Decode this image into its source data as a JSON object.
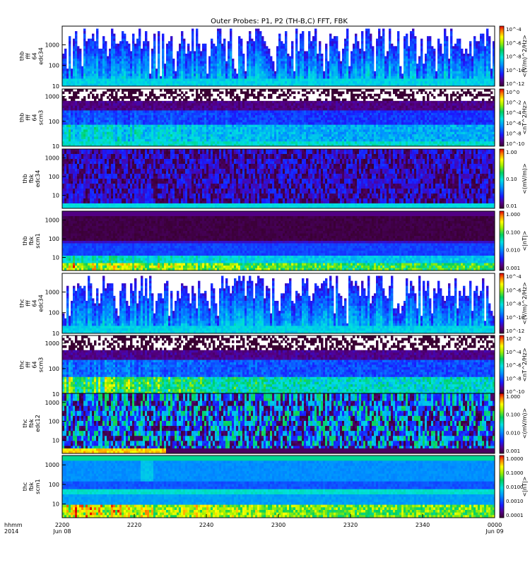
{
  "title": "Outer Probes: P1, P2 (TH-B,C) FFT, FBK",
  "time_axis": {
    "ticks": [
      "2200",
      "2220",
      "2240",
      "2300",
      "2320",
      "2340",
      "0000"
    ],
    "left_label_top": "hhmm",
    "left_label_bottom": "2014",
    "start_date": "Jun 08",
    "end_date": "Jun 09"
  },
  "chart_data": [
    {
      "type": "heatmap",
      "name": "thb-fff-64-edc34",
      "panel_label": [
        "thb",
        "fff",
        "64",
        "edc34"
      ],
      "y_ticks": [
        "10",
        "100",
        "1000"
      ],
      "y_scale": "log",
      "ylim": [
        10,
        8000
      ],
      "colorbar_label": "<(V/m)^2/Hz>",
      "colorbar_ticks": [
        "10^-4",
        "10^-6",
        "10^-8",
        "10^-10",
        "10^-12"
      ],
      "style": "spiky_edc",
      "seed": 11
    },
    {
      "type": "heatmap",
      "name": "thb-fff-64-scm3",
      "panel_label": [
        "thb",
        "fff",
        "64",
        "scm3"
      ],
      "y_ticks": [
        "10",
        "100",
        "1000"
      ],
      "y_scale": "log",
      "ylim": [
        10,
        2000
      ],
      "colorbar_label": "<nT^2/Hz>",
      "colorbar_ticks": [
        "10^0",
        "10^-2",
        "10^-4",
        "10^-6",
        "10^-8",
        "10^-10"
      ],
      "style": "noisy_scm",
      "seed": 23
    },
    {
      "type": "heatmap",
      "name": "thb-fbk-edc34",
      "panel_label": [
        "thb",
        "fbk",
        "edc34"
      ],
      "y_ticks": [
        "10",
        "100",
        "1000"
      ],
      "y_scale": "log",
      "ylim": [
        2,
        3000
      ],
      "colorbar_label": "<(mV/m)>",
      "colorbar_ticks": [
        "1.00",
        "0.10",
        "0.01"
      ],
      "style": "fbk_edc_dark",
      "seed": 37
    },
    {
      "type": "heatmap",
      "name": "thb-fbk-scm1",
      "panel_label": [
        "thb",
        "fbk",
        "scm1"
      ],
      "y_ticks": [
        "10",
        "100",
        "1000"
      ],
      "y_scale": "log",
      "ylim": [
        2,
        3000
      ],
      "colorbar_label": "<|nT|>",
      "colorbar_ticks": [
        "1.000",
        "0.100",
        "0.010",
        "0.001"
      ],
      "style": "fbk_scm_quiet",
      "seed": 41
    },
    {
      "type": "heatmap",
      "name": "thc-fff-64-edc34",
      "panel_label": [
        "thc",
        "fff",
        "64",
        "edc34"
      ],
      "y_ticks": [
        "10",
        "100",
        "1000"
      ],
      "y_scale": "log",
      "ylim": [
        10,
        8000
      ],
      "colorbar_label": "<(V/m)^2/Hz>",
      "colorbar_ticks": [
        "10^-4",
        "10^-6",
        "10^-8",
        "10^-10",
        "10^-12"
      ],
      "style": "spiky_edc",
      "seed": 53
    },
    {
      "type": "heatmap",
      "name": "thc-fff-64-scm3",
      "panel_label": [
        "thc",
        "fff",
        "64",
        "scm3"
      ],
      "y_ticks": [
        "10",
        "100",
        "1000"
      ],
      "y_scale": "log",
      "ylim": [
        10,
        2000
      ],
      "colorbar_label": "<nT^2/Hz>",
      "colorbar_ticks": [
        "10^-2",
        "10^-4",
        "10^-6",
        "10^-8",
        "10^-10"
      ],
      "style": "noisy_scm_active",
      "seed": 67
    },
    {
      "type": "heatmap",
      "name": "thc-fbk-edc12",
      "panel_label": [
        "thc",
        "fbk",
        "edc12"
      ],
      "y_ticks": [
        "10",
        "100",
        "1000"
      ],
      "y_scale": "log",
      "ylim": [
        2,
        3000
      ],
      "colorbar_label": "<(mV/m)>",
      "colorbar_ticks": [
        "1.000",
        "0.100",
        "0.010",
        "0.001"
      ],
      "style": "fbk_edc_active",
      "seed": 79
    },
    {
      "type": "heatmap",
      "name": "thc-fbk-scm1",
      "panel_label": [
        "thc",
        "fbk",
        "scm1"
      ],
      "y_ticks": [
        "10",
        "100",
        "1000"
      ],
      "y_scale": "log",
      "ylim": [
        2,
        3000
      ],
      "colorbar_label": "<|nT|>",
      "colorbar_ticks": [
        "1.0000",
        "0.1000",
        "0.0100",
        "0.0010",
        "0.0001"
      ],
      "style": "fbk_scm_active",
      "seed": 97
    }
  ]
}
